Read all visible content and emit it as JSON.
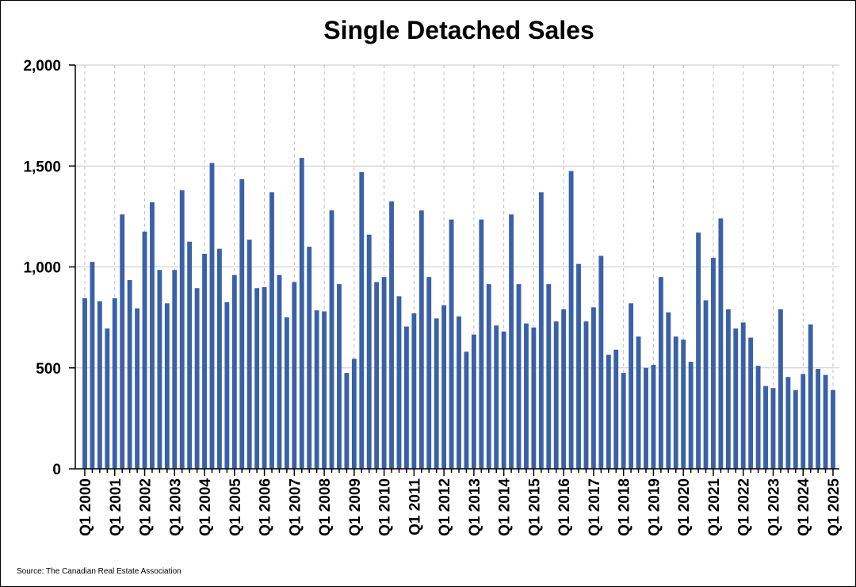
{
  "chart_data": {
    "type": "bar",
    "title": "Single Detached Sales",
    "source": "Source: The Canadian Real Estate Association",
    "bar_color": "#3a61a8",
    "ylim": [
      0,
      2000
    ],
    "yticks": [
      0,
      500,
      1000,
      1500,
      2000
    ],
    "ytick_labels": [
      "0",
      "500",
      "1,000",
      "1,500",
      "2,000"
    ],
    "grid": true,
    "x_tick_labels": [
      "Q1 2000",
      "Q1 2001",
      "Q1 2002",
      "Q1 2003",
      "Q1 2004",
      "Q1 2005",
      "Q1 2006",
      "Q1 2007",
      "Q1 2008",
      "Q1 2009",
      "Q1 2010",
      "Q1 2011",
      "Q1 2012",
      "Q1 2013",
      "Q1 2014",
      "Q1 2015",
      "Q1 2016",
      "Q1 2017",
      "Q1 2018",
      "Q1 2019",
      "Q1 2020",
      "Q1 2021",
      "Q1 2022",
      "Q1 2023",
      "Q1 2024",
      "Q1 2025"
    ],
    "start_quarter": "Q1 2000",
    "values": [
      845,
      1025,
      830,
      695,
      845,
      1260,
      935,
      795,
      1175,
      1320,
      985,
      820,
      985,
      1380,
      1125,
      895,
      1065,
      1515,
      1090,
      825,
      960,
      1435,
      1135,
      895,
      900,
      1370,
      960,
      750,
      925,
      1540,
      1100,
      785,
      780,
      1280,
      915,
      475,
      545,
      1470,
      1160,
      925,
      950,
      1325,
      855,
      705,
      770,
      1280,
      950,
      745,
      810,
      1235,
      755,
      580,
      665,
      1235,
      915,
      710,
      680,
      1260,
      915,
      720,
      700,
      1370,
      915,
      730,
      790,
      1475,
      1015,
      730,
      800,
      1055,
      565,
      590,
      475,
      820,
      655,
      500,
      515,
      950,
      775,
      655,
      640,
      530,
      1170,
      835,
      1045,
      1240,
      790,
      695,
      725,
      650,
      510,
      410,
      400,
      790,
      455,
      390,
      470,
      715,
      495,
      465,
      390
    ]
  }
}
